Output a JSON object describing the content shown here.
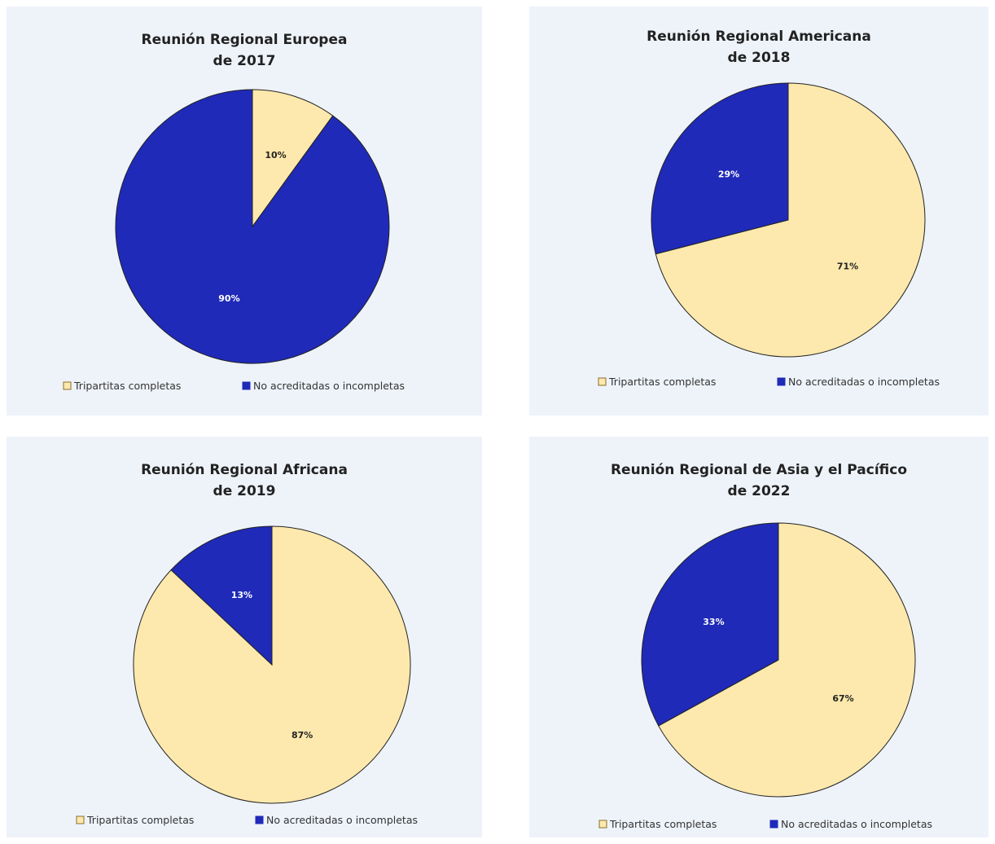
{
  "colors": {
    "complete": "#fde9ad",
    "incomplete": "#1f2ab8",
    "outline": "#222222",
    "panel_bg": "#eef3fa"
  },
  "chart_data": [
    {
      "type": "pie",
      "title": [
        "Reunión Regional Europea",
        "de 2017"
      ],
      "slices": [
        {
          "name": "Tripartitas completas",
          "value": 10,
          "label": "10%"
        },
        {
          "name": "No acreditadas o incompletas",
          "value": 90,
          "label": "90%"
        }
      ],
      "legend": [
        "Tripartitas completas",
        "No acreditadas o incompletas"
      ],
      "legend_position": "bottom"
    },
    {
      "type": "pie",
      "title": [
        "Reunión Regional Americana",
        "de 2018"
      ],
      "slices": [
        {
          "name": "Tripartitas completas",
          "value": 71,
          "label": "71%"
        },
        {
          "name": "No acreditadas o incompletas",
          "value": 29,
          "label": "29%"
        }
      ],
      "legend": [
        "Tripartitas completas",
        "No acreditadas o incompletas"
      ],
      "legend_position": "bottom"
    },
    {
      "type": "pie",
      "title": [
        "Reunión Regional Africana",
        "de 2019"
      ],
      "slices": [
        {
          "name": "Tripartitas completas",
          "value": 87,
          "label": "87%"
        },
        {
          "name": "No acreditadas o incompletas",
          "value": 13,
          "label": "13%"
        }
      ],
      "legend": [
        "Tripartitas completas",
        "No acreditadas o incompletas"
      ],
      "legend_position": "bottom"
    },
    {
      "type": "pie",
      "title": [
        "Reunión Regional de Asia y el Pacífico",
        "de 2022"
      ],
      "slices": [
        {
          "name": "Tripartitas completas",
          "value": 67,
          "label": "67%"
        },
        {
          "name": "No acreditadas o incompletas",
          "value": 33,
          "label": "33%"
        }
      ],
      "legend": [
        "Tripartitas completas",
        "No acreditadas o incompletas"
      ],
      "legend_position": "bottom"
    }
  ]
}
